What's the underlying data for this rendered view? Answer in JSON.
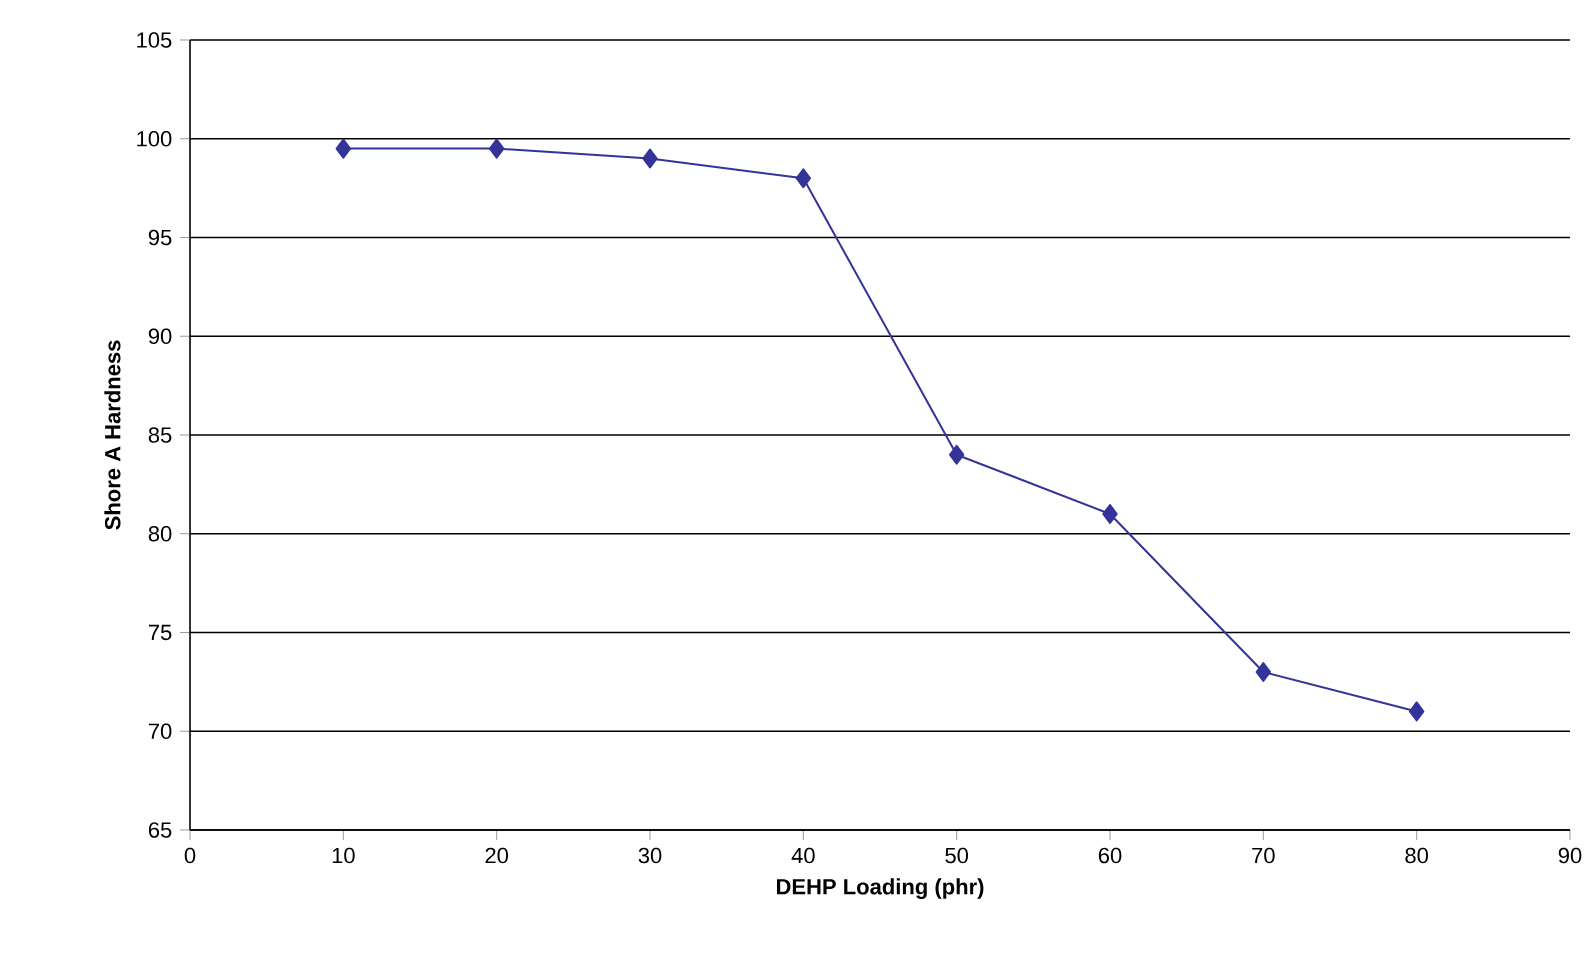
{
  "chart_data": {
    "type": "line",
    "xlabel": "DEHP Loading (phr)",
    "ylabel": "Shore A Hardness",
    "x": [
      10,
      20,
      30,
      40,
      50,
      60,
      70,
      80
    ],
    "series": [
      {
        "color": "#333399",
        "values": [
          99.5,
          99.5,
          99,
          98,
          84,
          81,
          73,
          71
        ]
      }
    ],
    "xlim": [
      0,
      90
    ],
    "xticks": [
      0,
      10,
      20,
      30,
      40,
      50,
      60,
      70,
      80,
      90
    ],
    "ylim": [
      65,
      105
    ],
    "yticks": [
      65,
      70,
      75,
      80,
      85,
      90,
      95,
      100,
      105
    ],
    "grid": "y",
    "marker": "diamond"
  }
}
